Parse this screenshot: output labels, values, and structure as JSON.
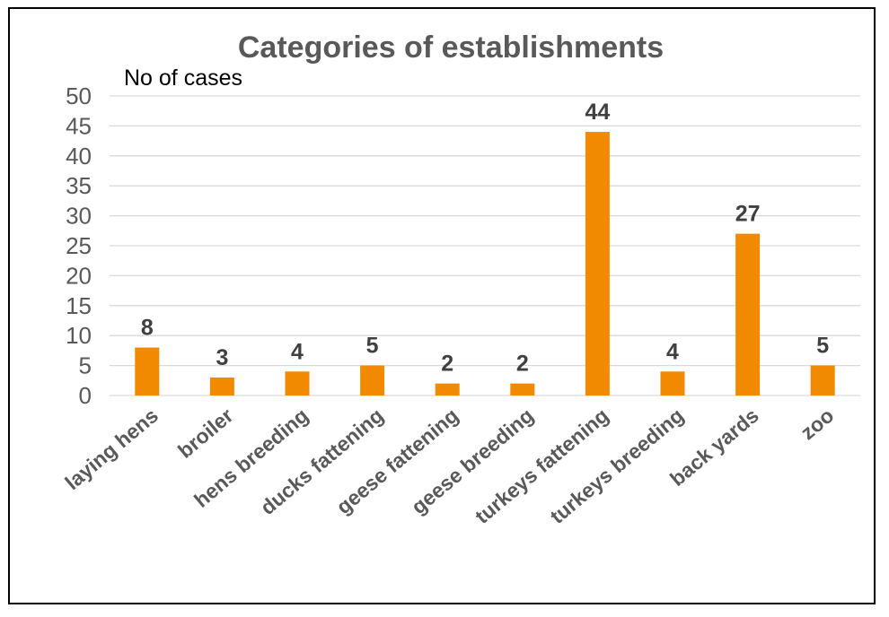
{
  "chart_data": {
    "type": "bar",
    "title": "Categories of establishments",
    "ylabel": "No of cases",
    "xlabel": "",
    "categories": [
      "laying hens",
      "broiler",
      "hens breeding",
      "ducks fattening",
      "geese fattening",
      "geese breeding",
      "turkeys fattening",
      "turkeys breeding",
      "back yards",
      "zoo"
    ],
    "values": [
      8,
      3,
      4,
      5,
      2,
      2,
      44,
      4,
      27,
      5
    ],
    "ylim": [
      0,
      50
    ],
    "yticks": [
      0,
      5,
      10,
      15,
      20,
      25,
      30,
      35,
      40,
      45,
      50
    ],
    "grid": true,
    "legend": "none",
    "bar_color": "#f28a00",
    "data_labels": true
  }
}
